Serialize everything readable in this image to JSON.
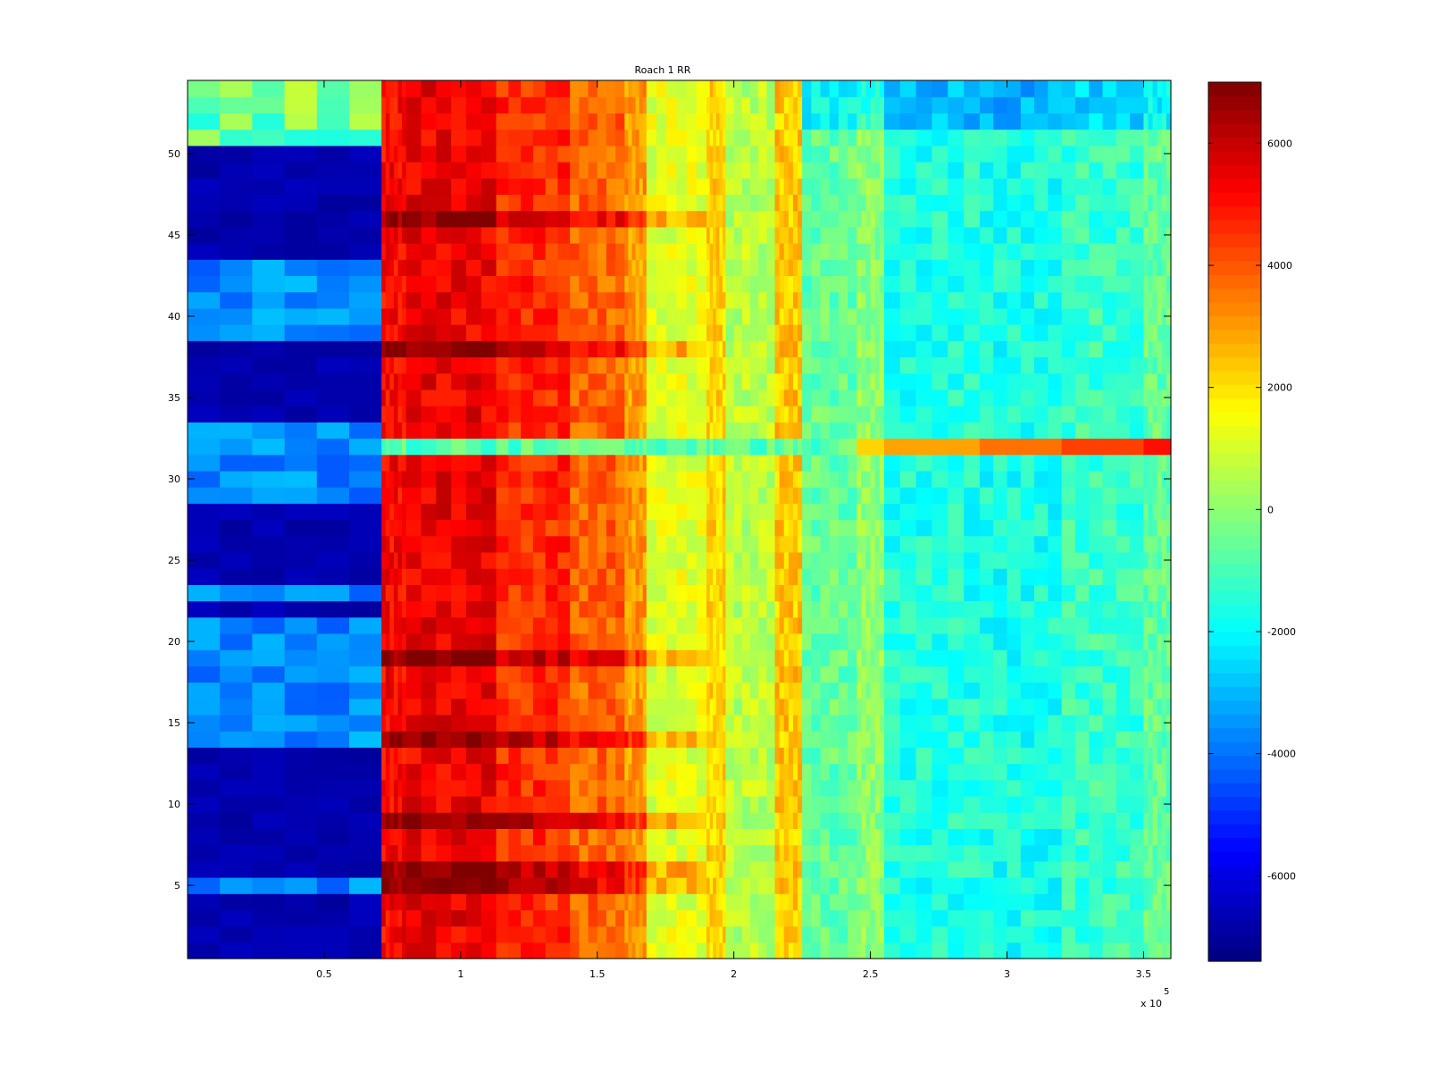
{
  "chart_data": {
    "type": "heatmap",
    "title": "Roach 1 RR",
    "xlabel": "",
    "ylabel": "",
    "x_exponent_label": "x 10",
    "x_exponent_power": "5",
    "xlim": [
      0,
      360000
    ],
    "ylim": [
      0.5,
      54.5
    ],
    "xticks": [
      50000,
      100000,
      150000,
      200000,
      250000,
      300000,
      350000
    ],
    "xtick_labels": [
      "0.5",
      "1",
      "1.5",
      "2",
      "2.5",
      "3",
      "3.5"
    ],
    "yticks": [
      5,
      10,
      15,
      20,
      25,
      30,
      35,
      40,
      45,
      50
    ],
    "ytick_labels": [
      "5",
      "10",
      "15",
      "20",
      "25",
      "30",
      "35",
      "40",
      "45",
      "50"
    ],
    "colormap": "jet",
    "clim": [
      -7400,
      7000
    ],
    "colorbar_ticks": [
      -6000,
      -4000,
      -2000,
      0,
      2000,
      4000,
      6000
    ],
    "colorbar_tick_labels": [
      "-6000",
      "-4000",
      "-2000",
      "0",
      "2000",
      "4000",
      "6000"
    ],
    "rows": 54,
    "x_segments": [
      0,
      71000,
      80000,
      113000,
      140000,
      160000,
      168000,
      190000,
      197000,
      215000,
      225000,
      245000,
      255000,
      290000,
      320000,
      350000,
      360000
    ],
    "segment_base_values": [
      -3200,
      5200,
      5400,
      4600,
      3800,
      3000,
      1200,
      2200,
      600,
      2400,
      -600,
      0,
      -1600,
      -1700,
      -1200,
      -600
    ],
    "dark_blue_rows": [
      1,
      2,
      3,
      4,
      6,
      7,
      8,
      9,
      10,
      11,
      12,
      13,
      22,
      24,
      25,
      26,
      27,
      28,
      34,
      35,
      36,
      37,
      38,
      44,
      45,
      46,
      47,
      48,
      49,
      50
    ],
    "hot_rows": [
      5,
      6,
      9,
      14,
      19,
      38,
      46
    ],
    "row32_high": true
  }
}
